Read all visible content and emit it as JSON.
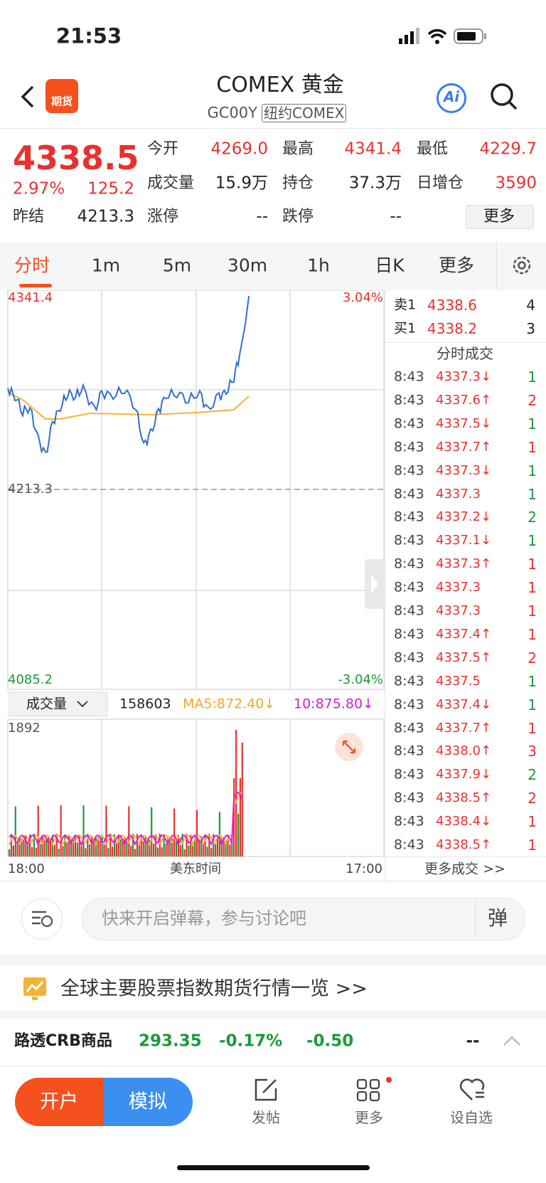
{
  "status_bar": {
    "time": "21:53"
  },
  "header": {
    "badge": "期货",
    "title": "COMEX 黄金",
    "code": "GC00Y",
    "exchange": "纽约COMEX",
    "ai": "Ai"
  },
  "quote": {
    "price": "4338.5",
    "change_pct": "2.97%",
    "change": "125.2",
    "fields": [
      {
        "label": "今开",
        "value": "4269.0",
        "color": "#e8312f"
      },
      {
        "label": "最高",
        "value": "4341.4",
        "color": "#e8312f"
      },
      {
        "label": "最低",
        "value": "4229.7",
        "color": "#e8312f"
      },
      {
        "label": "成交量",
        "value": "15.9万",
        "color": "#222222"
      },
      {
        "label": "持仓",
        "value": "37.3万",
        "color": "#222222"
      },
      {
        "label": "日增仓",
        "value": "3590",
        "color": "#e8312f"
      },
      {
        "label": "昨结",
        "value": "4213.3",
        "color": "#222222"
      },
      {
        "label": "涨停",
        "value": "--",
        "color": "#222222"
      },
      {
        "label": "跌停",
        "value": "--",
        "color": "#222222"
      }
    ],
    "more": "更多"
  },
  "tabs": [
    "分时",
    "1m",
    "5m",
    "30m",
    "1h",
    "日K",
    "更多"
  ],
  "chart": {
    "top_price": "4341.4",
    "top_pct": "3.04%",
    "ref_price": "4213.3",
    "bottom_price": "4085.2",
    "bottom_pct": "-3.04%",
    "volume_selector": "成交量",
    "volume": "158603",
    "ma5": "MA5:872.40↓",
    "ma10": "10:875.80↓",
    "volume_max": "1892",
    "x_start": "18:00",
    "x_label": "美东时间",
    "x_end": "17:00"
  },
  "order_book": {
    "sell": {
      "label": "卖1",
      "price": "4338.6",
      "qty": "4"
    },
    "buy": {
      "label": "买1",
      "price": "4338.2",
      "qty": "3"
    }
  },
  "trades": {
    "title": "分时成交",
    "more": "更多成交 >>",
    "rows": [
      {
        "time": "8:43",
        "price": "4337.3↓",
        "qty": "1",
        "color": "#1a9a3a"
      },
      {
        "time": "8:43",
        "price": "4337.6↑",
        "qty": "2",
        "color": "#e8312f"
      },
      {
        "time": "8:43",
        "price": "4337.5↓",
        "qty": "1",
        "color": "#1a9a3a"
      },
      {
        "time": "8:43",
        "price": "4337.7↑",
        "qty": "1",
        "color": "#e8312f"
      },
      {
        "time": "8:43",
        "price": "4337.3↓",
        "qty": "1",
        "color": "#1a9a3a"
      },
      {
        "time": "8:43",
        "price": "4337.3",
        "qty": "1",
        "color": "#1a9a3a"
      },
      {
        "time": "8:43",
        "price": "4337.2↓",
        "qty": "2",
        "color": "#1a9a3a"
      },
      {
        "time": "8:43",
        "price": "4337.1↓",
        "qty": "1",
        "color": "#1a9a3a"
      },
      {
        "time": "8:43",
        "price": "4337.3↑",
        "qty": "1",
        "color": "#e8312f"
      },
      {
        "time": "8:43",
        "price": "4337.3",
        "qty": "1",
        "color": "#e8312f"
      },
      {
        "time": "8:43",
        "price": "4337.3",
        "qty": "1",
        "color": "#e8312f"
      },
      {
        "time": "8:43",
        "price": "4337.4↑",
        "qty": "1",
        "color": "#e8312f"
      },
      {
        "time": "8:43",
        "price": "4337.5↑",
        "qty": "2",
        "color": "#e8312f"
      },
      {
        "time": "8:43",
        "price": "4337.5",
        "qty": "1",
        "color": "#1a9a3a"
      },
      {
        "time": "8:43",
        "price": "4337.4↓",
        "qty": "1",
        "color": "#1a9a3a"
      },
      {
        "time": "8:43",
        "price": "4337.7↑",
        "qty": "1",
        "color": "#e8312f"
      },
      {
        "time": "8:43",
        "price": "4338.0↑",
        "qty": "3",
        "color": "#e8312f"
      },
      {
        "time": "8:43",
        "price": "4337.9↓",
        "qty": "2",
        "color": "#1a9a3a"
      },
      {
        "time": "8:43",
        "price": "4338.5↑",
        "qty": "2",
        "color": "#e8312f"
      },
      {
        "time": "8:43",
        "price": "4338.4↓",
        "qty": "1",
        "color": "#e8312f"
      },
      {
        "time": "8:43",
        "price": "4338.5↑",
        "qty": "1",
        "color": "#e8312f"
      }
    ]
  },
  "comment": {
    "placeholder": "快来开启弹幕，参与讨论吧",
    "danmu": "弹"
  },
  "banner": {
    "text": "全球主要股票指数期货行情一览 >>"
  },
  "ticker": {
    "name": "路透CRB商品",
    "value": "293.35",
    "pct": "-0.17%",
    "change": "-0.50",
    "extra": "--"
  },
  "nav": {
    "open": "开户",
    "simulate": "模拟",
    "items": [
      "发帖",
      "更多",
      "设自选"
    ]
  }
}
